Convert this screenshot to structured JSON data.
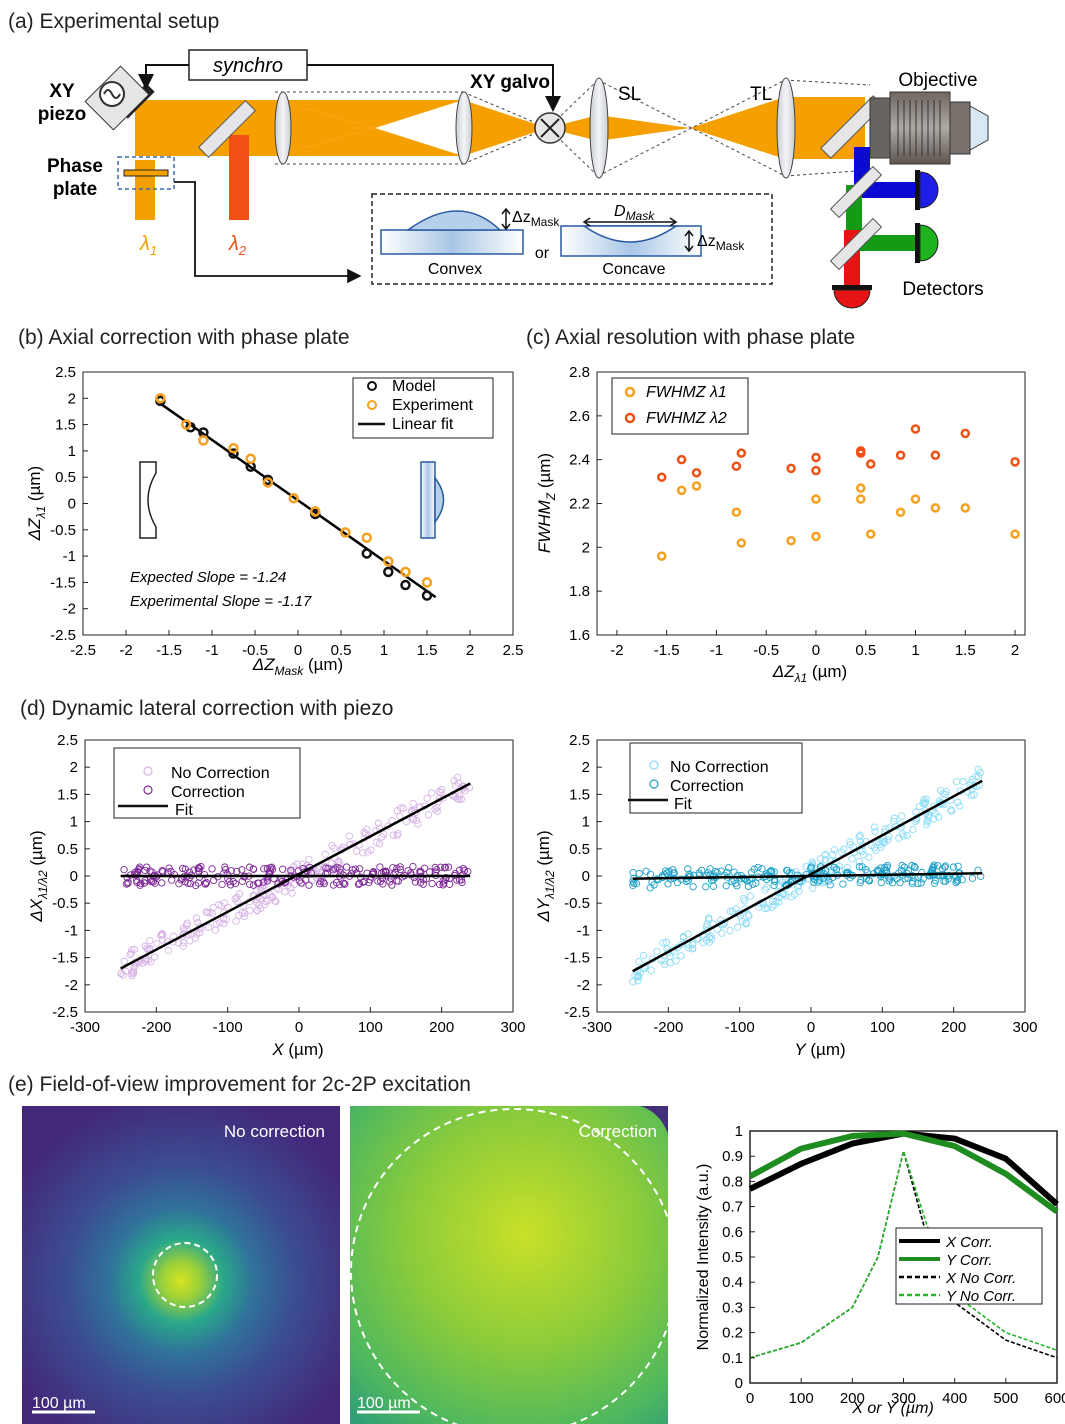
{
  "panel_a": {
    "title": "(a) Experimental setup",
    "synchro": "synchro",
    "xy_piezo": [
      "XY",
      "piezo"
    ],
    "phase_plate": [
      "Phase",
      "plate"
    ],
    "lambda1": "λ",
    "lambda1_sub": "1",
    "lambda2": "λ",
    "lambda2_sub": "2",
    "xy_galvo": "XY galvo",
    "sl": "SL",
    "tl": "TL",
    "objective": "Objective",
    "detectors": "Detectors",
    "dz_mask": "Δz",
    "dz_mask_sub": "Mask",
    "d_mask": "D",
    "d_mask_sub": "Mask",
    "convex": "Convex",
    "or": "or",
    "concave": "Concave",
    "colors": {
      "beam": "#f5a000",
      "red_beam": "#f05014",
      "blue": "#0a0ad2",
      "green": "#149a14",
      "red": "#e61414"
    }
  },
  "panel_b": {
    "title": "(b) Axial correction with phase plate",
    "chart_data": {
      "type": "scatter",
      "xlabel": "ΔZ",
      "xlabel_sub": "Mask",
      "xlabel_unit": " (µm)",
      "ylabel": "ΔZ",
      "ylabel_sub": "λ1",
      "ylabel_unit": " (µm)",
      "xlim": [
        -2.5,
        2.5
      ],
      "ylim": [
        -2.5,
        2.5
      ],
      "xticks": [
        "-2.5",
        "-2",
        "-1.5",
        "-1",
        "-0.5",
        "0",
        "0.5",
        "1",
        "1.5",
        "2",
        "2.5"
      ],
      "yticks": [
        "2.5",
        "2",
        "1.5",
        "1",
        "0.5",
        "0",
        "-0.5",
        "-1",
        "-1.5",
        "-2",
        "-2.5"
      ],
      "legend": [
        "Model",
        "Experiment",
        "Linear fit"
      ],
      "annotations": [
        "Expected Slope = -1.24",
        "Experimental Slope = -1.17"
      ],
      "series": [
        {
          "name": "Model",
          "color": "#111111",
          "x": [
            -1.6,
            -1.25,
            -1.1,
            -0.75,
            -0.55,
            -0.35,
            0.2,
            0.8,
            1.05,
            1.25,
            1.5
          ],
          "y": [
            1.95,
            1.45,
            1.35,
            0.95,
            0.7,
            0.45,
            -0.2,
            -0.95,
            -1.3,
            -1.55,
            -1.75
          ]
        },
        {
          "name": "Experiment",
          "color": "#f5a01e",
          "x": [
            -1.6,
            -1.3,
            -1.1,
            -0.75,
            -0.55,
            -0.35,
            -0.05,
            0.2,
            0.55,
            0.8,
            1.05,
            1.25,
            1.5
          ],
          "y": [
            2.0,
            1.5,
            1.2,
            1.05,
            0.85,
            0.4,
            0.1,
            -0.15,
            -0.55,
            -0.65,
            -1.1,
            -1.3,
            -1.5
          ]
        },
        {
          "name": "Linear fit",
          "color": "#000000",
          "x": [
            -1.6,
            1.6
          ],
          "y": [
            1.9,
            -1.78
          ]
        }
      ]
    }
  },
  "panel_c": {
    "title": "(c) Axial resolution with phase plate",
    "chart_data": {
      "type": "scatter",
      "xlabel": "ΔZ",
      "xlabel_sub": "λ1",
      "xlabel_unit": " (µm)",
      "ylabel": "FWHM",
      "ylabel_sub": "Z",
      "ylabel_unit": " (µm)",
      "xlim": [
        -2.2,
        2.1
      ],
      "ylim": [
        1.6,
        2.8
      ],
      "xticks": [
        "-2",
        "-1.5",
        "-1",
        "-0.5",
        "0",
        "0.5",
        "1",
        "1.5",
        "2"
      ],
      "yticks": [
        "2.8",
        "2.6",
        "2.4",
        "2.2",
        "2",
        "1.8",
        "1.6"
      ],
      "legend": [
        "FWHMZ λ1",
        "FWHMZ λ2"
      ],
      "series": [
        {
          "name": "FWHMZ λ1",
          "color": "#f5a01e",
          "x": [
            -1.55,
            -1.35,
            -1.2,
            -0.8,
            -0.75,
            -0.25,
            0,
            0,
            0.45,
            0.45,
            0.55,
            0.85,
            1.0,
            1.2,
            1.5,
            2.0
          ],
          "y": [
            1.96,
            2.26,
            2.28,
            2.16,
            2.02,
            2.03,
            2.05,
            2.22,
            2.27,
            2.22,
            2.06,
            2.16,
            2.22,
            2.18,
            2.18,
            2.06
          ]
        },
        {
          "name": "FWHMZ λ2",
          "color": "#f05014",
          "x": [
            -1.55,
            -1.35,
            -1.2,
            -0.8,
            -0.75,
            -0.25,
            0,
            0,
            0.45,
            0.45,
            0.55,
            0.85,
            1.0,
            1.2,
            1.5,
            2.0
          ],
          "y": [
            2.32,
            2.4,
            2.34,
            2.37,
            2.43,
            2.36,
            2.41,
            2.35,
            2.43,
            2.44,
            2.38,
            2.42,
            2.54,
            2.42,
            2.52,
            2.39
          ]
        }
      ]
    }
  },
  "panel_d": {
    "title": "(d) Dynamic lateral correction with piezo",
    "chart_data": [
      {
        "type": "scatter",
        "xlabel": "X",
        "xlabel_unit": " (µm)",
        "ylabel": "ΔX",
        "ylabel_sub": "λ1/λ2",
        "ylabel_unit": " (µm)",
        "xlim": [
          -300,
          300
        ],
        "ylim": [
          -2.5,
          2.5
        ],
        "xticks": [
          "-300",
          "-200",
          "-100",
          "0",
          "100",
          "200",
          "300"
        ],
        "yticks": [
          "2.5",
          "2",
          "1.5",
          "1",
          "0.5",
          "0",
          "-0.5",
          "-1",
          "-1.5",
          "-2",
          "-2.5"
        ],
        "legend": [
          "No Correction",
          "Correction",
          "Fit"
        ],
        "colors": {
          "no_correction": "#d7b4e6",
          "correction": "#7d2896"
        },
        "series": [
          {
            "name": "No Correction",
            "x": [
              -250,
              0,
              240
            ],
            "y": [
              -1.7,
              0,
              1.7
            ]
          },
          {
            "name": "Correction",
            "x": [
              -250,
              0,
              240
            ],
            "y": [
              0,
              0,
              0
            ]
          },
          {
            "name": "Fit",
            "x": [
              -250,
              240
            ],
            "y": [
              -1.7,
              1.7
            ]
          }
        ]
      },
      {
        "type": "scatter",
        "xlabel": "Y",
        "xlabel_unit": " (µm)",
        "ylabel": "ΔY",
        "ylabel_sub": "λ1/λ2",
        "ylabel_unit": " (µm)",
        "xlim": [
          -300,
          300
        ],
        "ylim": [
          -2.5,
          2.5
        ],
        "xticks": [
          "-300",
          "-200",
          "-100",
          "0",
          "100",
          "200",
          "300"
        ],
        "yticks": [
          "2.5",
          "2",
          "1.5",
          "1",
          "0.5",
          "0",
          "-0.5",
          "-1",
          "-1.5",
          "-2",
          "-2.5"
        ],
        "legend": [
          "No Correction",
          "Correction",
          "Fit"
        ],
        "colors": {
          "no_correction": "#8cdcf5",
          "correction": "#1ea0c8"
        },
        "series": [
          {
            "name": "No Correction",
            "x": [
              -250,
              0,
              240
            ],
            "y": [
              -1.75,
              0,
              1.75
            ]
          },
          {
            "name": "Correction",
            "x": [
              -250,
              0,
              240
            ],
            "y": [
              -0.05,
              0,
              0.05
            ]
          },
          {
            "name": "Fit",
            "x": [
              -250,
              240
            ],
            "y": [
              -1.75,
              1.75
            ]
          }
        ]
      }
    ]
  },
  "panel_e": {
    "title": "(e) Field-of-view improvement for 2c-2P excitation",
    "image_left_label": "No correction",
    "image_right_label": "Correction",
    "scalebar": "100 µm",
    "chart_data": {
      "type": "line",
      "xlabel": "X or Y (µm)",
      "ylabel": "Normalized Intensity (a.u.)",
      "xlim": [
        0,
        600
      ],
      "ylim": [
        0,
        1
      ],
      "xticks": [
        "0",
        "100",
        "200",
        "300",
        "400",
        "500",
        "600"
      ],
      "yticks": [
        "1",
        "0.9",
        "0.8",
        "0.7",
        "0.6",
        "0.5",
        "0.4",
        "0.3",
        "0.2",
        "0.1",
        "0"
      ],
      "legend": [
        "X Corr.",
        "Y Corr.",
        "X No Corr.",
        "Y No Corr."
      ],
      "series": [
        {
          "name": "X Corr.",
          "color": "#000000",
          "x": [
            0,
            100,
            200,
            300,
            400,
            500,
            600
          ],
          "y": [
            0.77,
            0.87,
            0.95,
            0.99,
            0.97,
            0.89,
            0.71
          ]
        },
        {
          "name": "Y Corr.",
          "color": "#1e8c1e",
          "x": [
            0,
            100,
            200,
            300,
            400,
            500,
            600
          ],
          "y": [
            0.82,
            0.93,
            0.98,
            0.99,
            0.94,
            0.83,
            0.68
          ]
        },
        {
          "name": "X No Corr.",
          "color": "#000000",
          "x": [
            0,
            100,
            200,
            250,
            300,
            350,
            400,
            500,
            600
          ],
          "y": [
            0.1,
            0.16,
            0.3,
            0.5,
            0.92,
            0.55,
            0.32,
            0.17,
            0.1
          ]
        },
        {
          "name": "Y No Corr.",
          "color": "#28b428",
          "x": [
            0,
            100,
            200,
            250,
            300,
            350,
            400,
            500,
            600
          ],
          "y": [
            0.1,
            0.16,
            0.3,
            0.5,
            0.92,
            0.6,
            0.35,
            0.2,
            0.13
          ]
        }
      ]
    }
  }
}
